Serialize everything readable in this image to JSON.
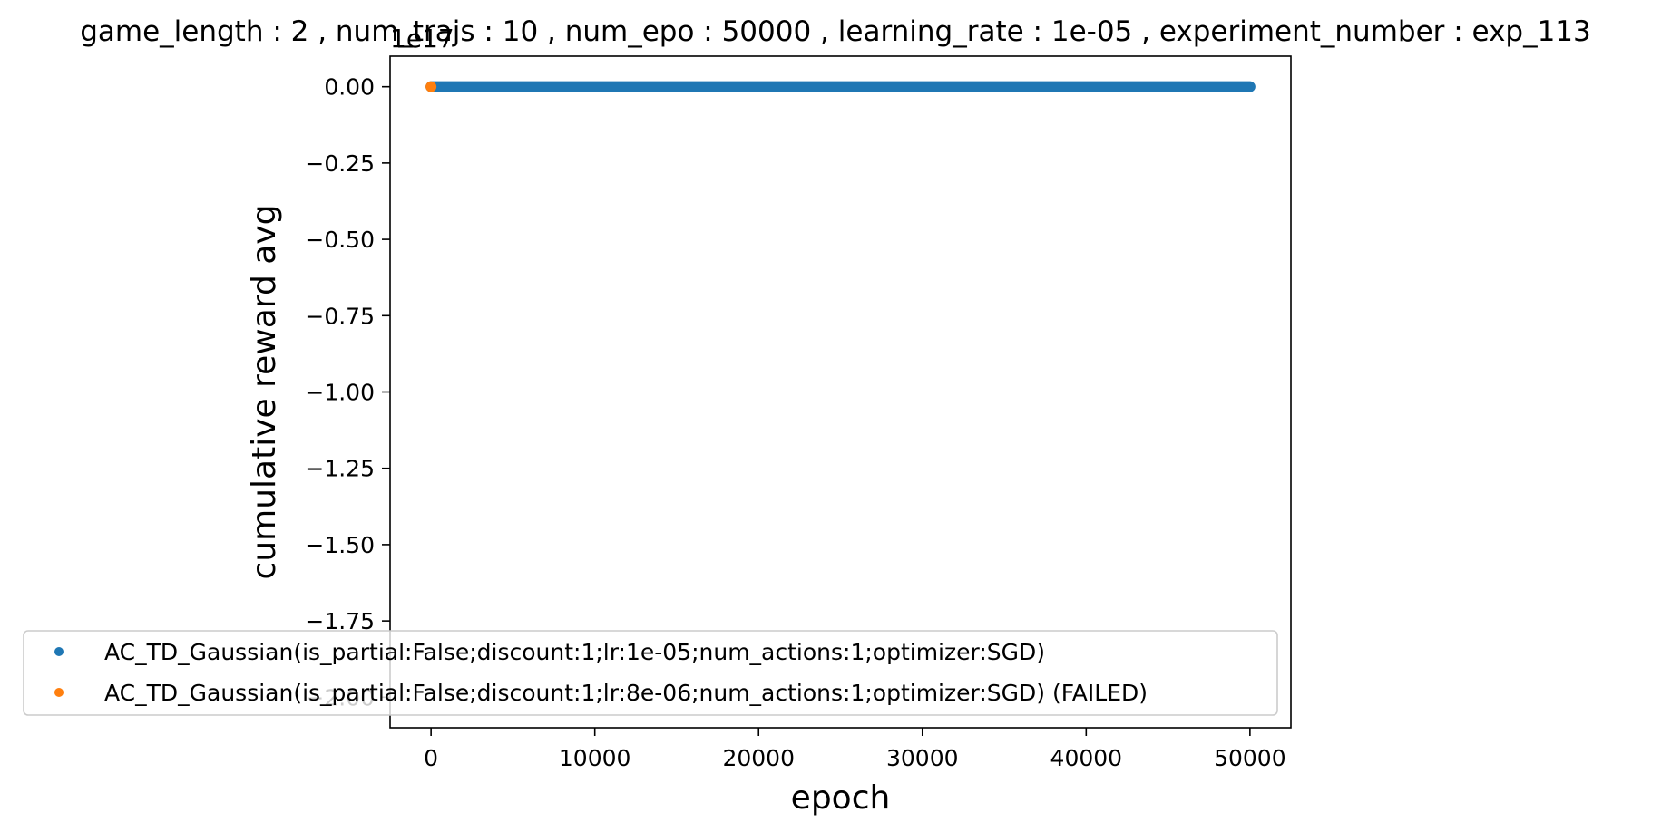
{
  "chart_data": {
    "type": "scatter",
    "title": "game_length : 2 , num_trajs : 10 , num_epo : 50000 , learning_rate : 1e-05 , experiment_number : exp_113",
    "xlabel": "epoch",
    "ylabel": "cumulative reward avg",
    "y_offset_label": "1e17",
    "xlim": [
      -2500,
      52500
    ],
    "ylim": [
      -2.1,
      0.1
    ],
    "x_ticks": [
      0,
      10000,
      20000,
      30000,
      40000,
      50000
    ],
    "x_tick_labels": [
      "0",
      "10000",
      "20000",
      "30000",
      "40000",
      "50000"
    ],
    "y_ticks": [
      0.0,
      -0.25,
      -0.5,
      -0.75,
      -1.0,
      -1.25,
      -1.5,
      -1.75,
      -2.0
    ],
    "y_tick_labels": [
      "0.00",
      "−0.25",
      "−0.50",
      "−0.75",
      "−1.00",
      "−1.25",
      "−1.50",
      "−1.75",
      "−2.00"
    ],
    "grid": false,
    "legend_position": "lower-left",
    "series": [
      {
        "name": "AC_TD_Gaussian(is_partial:False;discount:1;lr:1e-05;num_actions:1;optimizer:SGD)",
        "color": "#1f77b4",
        "x_range": [
          0,
          50000
        ],
        "y_value": 0.0
      },
      {
        "name": "AC_TD_Gaussian(is_partial:False;discount:1;lr:8e-06;num_actions:1;optimizer:SGD) (FAILED)",
        "color": "#ff7f0e",
        "x": [
          0
        ],
        "y": [
          0.0
        ]
      }
    ]
  }
}
